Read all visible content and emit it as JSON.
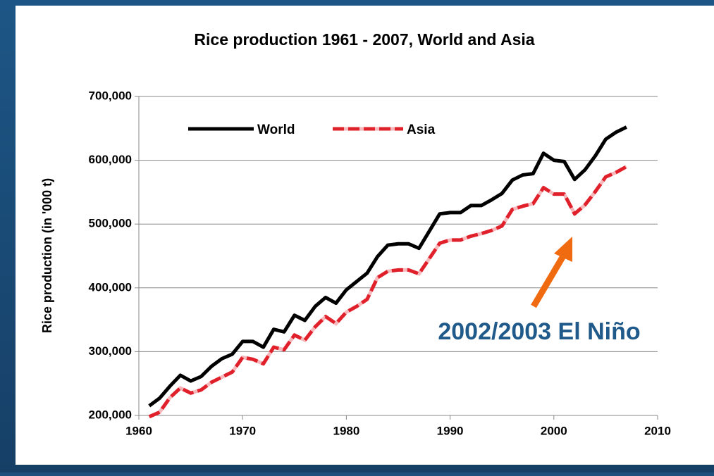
{
  "chart_data": {
    "type": "line",
    "title": "Rice production 1961 - 2007, World and Asia",
    "ylabel": "Rice production (in '000 t)",
    "annotation": "2002/2003 El Niño",
    "x": [
      1961,
      1962,
      1963,
      1964,
      1965,
      1966,
      1967,
      1968,
      1969,
      1970,
      1971,
      1972,
      1973,
      1974,
      1975,
      1976,
      1977,
      1978,
      1979,
      1980,
      1981,
      1982,
      1983,
      1984,
      1985,
      1986,
      1987,
      1988,
      1989,
      1990,
      1991,
      1992,
      1993,
      1994,
      1995,
      1996,
      1997,
      1998,
      1999,
      2000,
      2001,
      2002,
      2003,
      2004,
      2005,
      2006,
      2007
    ],
    "series": [
      {
        "name": "World",
        "color": "#000000",
        "values": [
          215000,
          227000,
          246000,
          263000,
          254000,
          261000,
          277000,
          289000,
          296000,
          316000,
          316000,
          307000,
          335000,
          331000,
          357000,
          349000,
          371000,
          385000,
          376000,
          397000,
          410000,
          423000,
          449000,
          467000,
          469000,
          469000,
          462000,
          489000,
          516000,
          518000,
          518000,
          529000,
          529000,
          538000,
          548000,
          569000,
          577000,
          579000,
          611000,
          600000,
          598000,
          570000,
          585000,
          607000,
          633000,
          644000,
          652000
        ]
      },
      {
        "name": "Asia",
        "color": "#e0202a",
        "values": [
          198000,
          205000,
          228000,
          243000,
          235000,
          240000,
          252000,
          260000,
          268000,
          291000,
          288000,
          281000,
          307000,
          303000,
          326000,
          318000,
          339000,
          355000,
          344000,
          362000,
          371000,
          382000,
          416000,
          426000,
          428000,
          428000,
          422000,
          446000,
          470000,
          475000,
          475000,
          481000,
          485000,
          490000,
          497000,
          523000,
          528000,
          532000,
          557000,
          547000,
          547000,
          516000,
          530000,
          551000,
          574000,
          581000,
          590000
        ]
      }
    ],
    "xlim": [
      1960,
      2010
    ],
    "xticks": [
      1960,
      1970,
      1980,
      1990,
      2000,
      2010
    ],
    "ylim": [
      200000,
      700000
    ],
    "yticks": [
      {
        "value": 200000,
        "label": "200,000"
      },
      {
        "value": 300000,
        "label": "300,000"
      },
      {
        "value": 400000,
        "label": "400,000"
      },
      {
        "value": 500000,
        "label": "500,000"
      },
      {
        "value": 600000,
        "label": "600,000"
      },
      {
        "value": 700000,
        "label": "700,000"
      }
    ],
    "grid": true,
    "legend": "upper-left"
  }
}
